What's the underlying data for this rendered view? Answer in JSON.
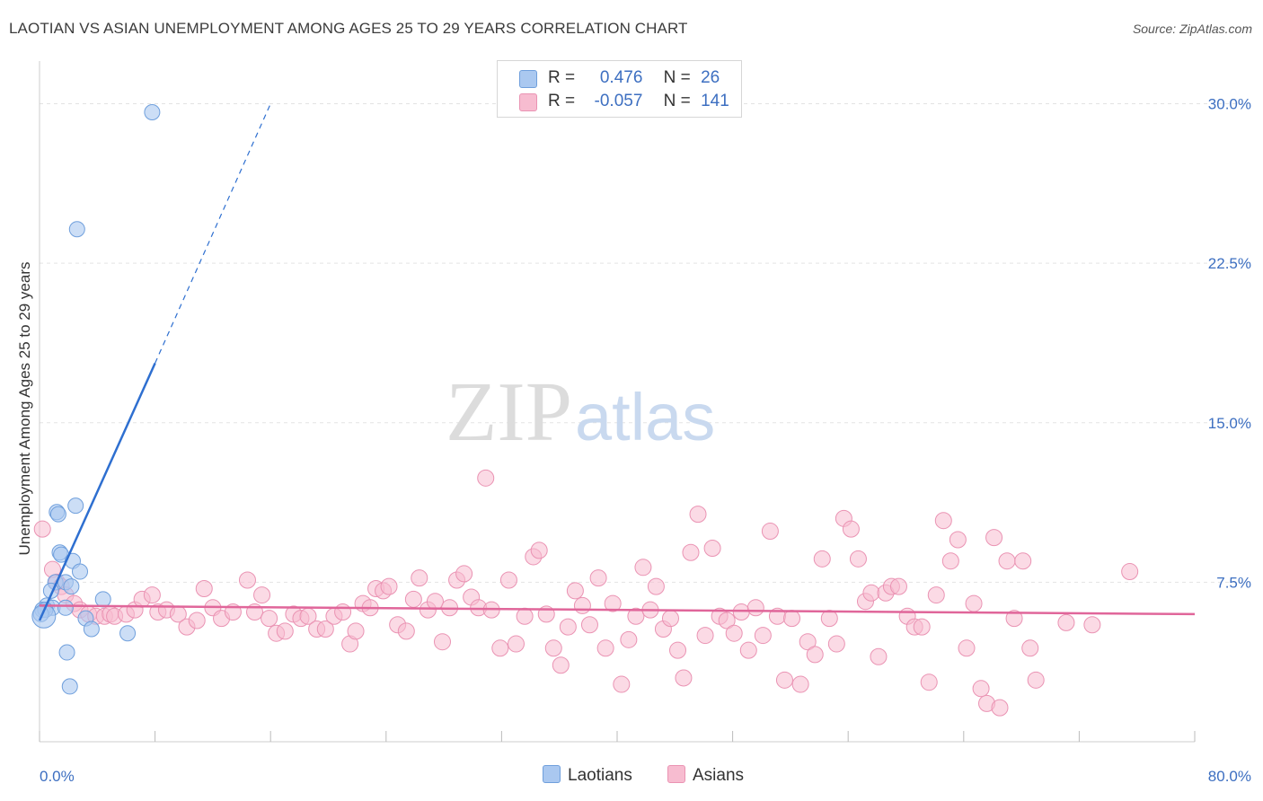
{
  "header": {
    "title": "LAOTIAN VS ASIAN UNEMPLOYMENT AMONG AGES 25 TO 29 YEARS CORRELATION CHART",
    "source": "Source: ZipAtlas.com"
  },
  "legend": {
    "r_label": "R =",
    "n_label": "N =",
    "laotian": {
      "r": "0.476",
      "n": "26"
    },
    "asian": {
      "r": "-0.057",
      "n": "141"
    }
  },
  "bottom_legend": {
    "laotians": "Laotians",
    "asians": "Asians"
  },
  "watermark": {
    "zip": "ZIP",
    "atlas": "atlas"
  },
  "colors": {
    "laotian_fill": "#aac8f0",
    "laotian_stroke": "#6f9fdc",
    "laotian_line": "#2e6fd0",
    "asian_fill": "#f7bcd0",
    "asian_stroke": "#ea93b3",
    "asian_line": "#e0669a",
    "tick_text": "#3d6fc1",
    "grid": "#e3e3e3"
  },
  "chart_data": {
    "type": "scatter",
    "title": "LAOTIAN VS ASIAN UNEMPLOYMENT AMONG AGES 25 TO 29 YEARS CORRELATION CHART",
    "xlabel": "",
    "ylabel": "Unemployment Among Ages 25 to 29 years",
    "xlim": [
      0,
      80
    ],
    "ylim": [
      0,
      31.5
    ],
    "x_tick_labels": [
      "0.0%",
      "80.0%"
    ],
    "y_ticks": [
      7.5,
      15.0,
      22.5,
      30.0
    ],
    "y_tick_labels": [
      "7.5%",
      "15.0%",
      "22.5%",
      "30.0%"
    ],
    "series": [
      {
        "name": "Laotians",
        "r": 0.476,
        "n": 26,
        "trend": {
          "x0": 0,
          "y0": 5.7,
          "x1": 8,
          "y1": 17.8,
          "dash_to_x": 16,
          "dash_to_y": 30.0
        },
        "points": [
          [
            7.8,
            29.6
          ],
          [
            2.6,
            24.1
          ],
          [
            1.2,
            10.8
          ],
          [
            1.3,
            10.7
          ],
          [
            2.5,
            11.1
          ],
          [
            1.4,
            8.9
          ],
          [
            1.5,
            8.8
          ],
          [
            2.3,
            8.5
          ],
          [
            2.8,
            8.0
          ],
          [
            1.1,
            7.5
          ],
          [
            1.8,
            7.5
          ],
          [
            2.2,
            7.3
          ],
          [
            0.8,
            7.1
          ],
          [
            4.4,
            6.7
          ],
          [
            0.5,
            6.4
          ],
          [
            0.9,
            6.3
          ],
          [
            0.2,
            6.2
          ],
          [
            0.4,
            6.2
          ],
          [
            1.8,
            6.3
          ],
          [
            3.2,
            5.8
          ],
          [
            0.1,
            6.0
          ],
          [
            3.6,
            5.3
          ],
          [
            6.1,
            5.1
          ],
          [
            1.9,
            4.2
          ],
          [
            2.1,
            2.6
          ],
          [
            0.3,
            5.9
          ]
        ]
      },
      {
        "name": "Asians",
        "r": -0.057,
        "n": 141,
        "trend": {
          "x0": 0,
          "y0": 6.4,
          "x1": 80,
          "y1": 6.0
        },
        "points": [
          [
            0.2,
            10.0
          ],
          [
            0.9,
            8.1
          ],
          [
            1.2,
            7.5
          ],
          [
            1.5,
            7.3
          ],
          [
            1.8,
            6.9
          ],
          [
            2.4,
            6.5
          ],
          [
            2.8,
            6.2
          ],
          [
            3.4,
            6.0
          ],
          [
            3.9,
            5.9
          ],
          [
            4.5,
            5.9
          ],
          [
            4.9,
            6.0
          ],
          [
            5.2,
            5.9
          ],
          [
            6.0,
            6.0
          ],
          [
            6.6,
            6.2
          ],
          [
            7.1,
            6.7
          ],
          [
            7.8,
            6.9
          ],
          [
            8.2,
            6.1
          ],
          [
            8.8,
            6.2
          ],
          [
            9.6,
            6.0
          ],
          [
            10.2,
            5.4
          ],
          [
            10.9,
            5.7
          ],
          [
            11.4,
            7.2
          ],
          [
            12.0,
            6.3
          ],
          [
            12.6,
            5.8
          ],
          [
            13.4,
            6.1
          ],
          [
            14.4,
            7.6
          ],
          [
            14.9,
            6.1
          ],
          [
            15.4,
            6.9
          ],
          [
            15.9,
            5.8
          ],
          [
            16.4,
            5.1
          ],
          [
            17.0,
            5.2
          ],
          [
            17.6,
            6.0
          ],
          [
            18.1,
            5.8
          ],
          [
            18.6,
            5.9
          ],
          [
            19.2,
            5.3
          ],
          [
            19.8,
            5.3
          ],
          [
            20.4,
            5.9
          ],
          [
            21.0,
            6.1
          ],
          [
            21.5,
            4.6
          ],
          [
            21.9,
            5.2
          ],
          [
            22.4,
            6.5
          ],
          [
            22.9,
            6.3
          ],
          [
            23.3,
            7.2
          ],
          [
            23.8,
            7.1
          ],
          [
            24.2,
            7.3
          ],
          [
            24.8,
            5.5
          ],
          [
            25.4,
            5.2
          ],
          [
            25.9,
            6.7
          ],
          [
            26.3,
            7.7
          ],
          [
            26.9,
            6.2
          ],
          [
            27.4,
            6.6
          ],
          [
            27.9,
            4.7
          ],
          [
            28.4,
            6.3
          ],
          [
            28.9,
            7.6
          ],
          [
            29.4,
            7.9
          ],
          [
            29.9,
            6.8
          ],
          [
            30.4,
            6.3
          ],
          [
            30.9,
            12.4
          ],
          [
            31.3,
            6.2
          ],
          [
            31.9,
            4.4
          ],
          [
            32.5,
            7.6
          ],
          [
            33.0,
            4.6
          ],
          [
            33.6,
            5.9
          ],
          [
            34.2,
            8.7
          ],
          [
            34.6,
            9.0
          ],
          [
            35.1,
            6.0
          ],
          [
            35.6,
            4.4
          ],
          [
            36.1,
            3.6
          ],
          [
            36.6,
            5.4
          ],
          [
            37.1,
            7.1
          ],
          [
            37.6,
            6.4
          ],
          [
            38.1,
            5.5
          ],
          [
            38.7,
            7.7
          ],
          [
            39.2,
            4.4
          ],
          [
            39.7,
            6.5
          ],
          [
            40.3,
            2.7
          ],
          [
            40.8,
            4.8
          ],
          [
            41.3,
            5.9
          ],
          [
            41.8,
            8.2
          ],
          [
            42.3,
            6.2
          ],
          [
            42.7,
            7.3
          ],
          [
            43.2,
            5.3
          ],
          [
            43.7,
            5.8
          ],
          [
            44.2,
            4.3
          ],
          [
            44.6,
            3.0
          ],
          [
            45.1,
            8.9
          ],
          [
            45.6,
            10.7
          ],
          [
            46.1,
            5.0
          ],
          [
            46.6,
            9.1
          ],
          [
            47.1,
            5.9
          ],
          [
            47.6,
            5.7
          ],
          [
            48.1,
            5.1
          ],
          [
            48.6,
            6.1
          ],
          [
            49.1,
            4.3
          ],
          [
            49.6,
            6.3
          ],
          [
            50.1,
            5.0
          ],
          [
            50.6,
            9.9
          ],
          [
            51.1,
            5.9
          ],
          [
            51.6,
            2.9
          ],
          [
            52.1,
            5.8
          ],
          [
            52.7,
            2.7
          ],
          [
            53.2,
            4.7
          ],
          [
            53.7,
            4.1
          ],
          [
            54.2,
            8.6
          ],
          [
            54.7,
            5.8
          ],
          [
            55.2,
            4.6
          ],
          [
            55.7,
            10.5
          ],
          [
            56.2,
            10.0
          ],
          [
            56.7,
            8.6
          ],
          [
            57.2,
            6.6
          ],
          [
            57.6,
            7.0
          ],
          [
            58.1,
            4.0
          ],
          [
            58.6,
            7.0
          ],
          [
            59.0,
            7.3
          ],
          [
            59.5,
            7.3
          ],
          [
            60.1,
            5.9
          ],
          [
            60.6,
            5.4
          ],
          [
            61.1,
            5.4
          ],
          [
            61.6,
            2.8
          ],
          [
            62.1,
            6.9
          ],
          [
            62.6,
            10.4
          ],
          [
            63.1,
            8.5
          ],
          [
            63.6,
            9.5
          ],
          [
            64.2,
            4.4
          ],
          [
            64.7,
            6.5
          ],
          [
            65.2,
            2.5
          ],
          [
            65.6,
            1.8
          ],
          [
            66.1,
            9.6
          ],
          [
            66.5,
            1.6
          ],
          [
            67.0,
            8.5
          ],
          [
            67.5,
            5.8
          ],
          [
            68.1,
            8.5
          ],
          [
            68.6,
            4.4
          ],
          [
            69.0,
            2.9
          ],
          [
            71.1,
            5.6
          ],
          [
            72.9,
            5.5
          ],
          [
            75.5,
            8.0
          ]
        ]
      }
    ]
  }
}
